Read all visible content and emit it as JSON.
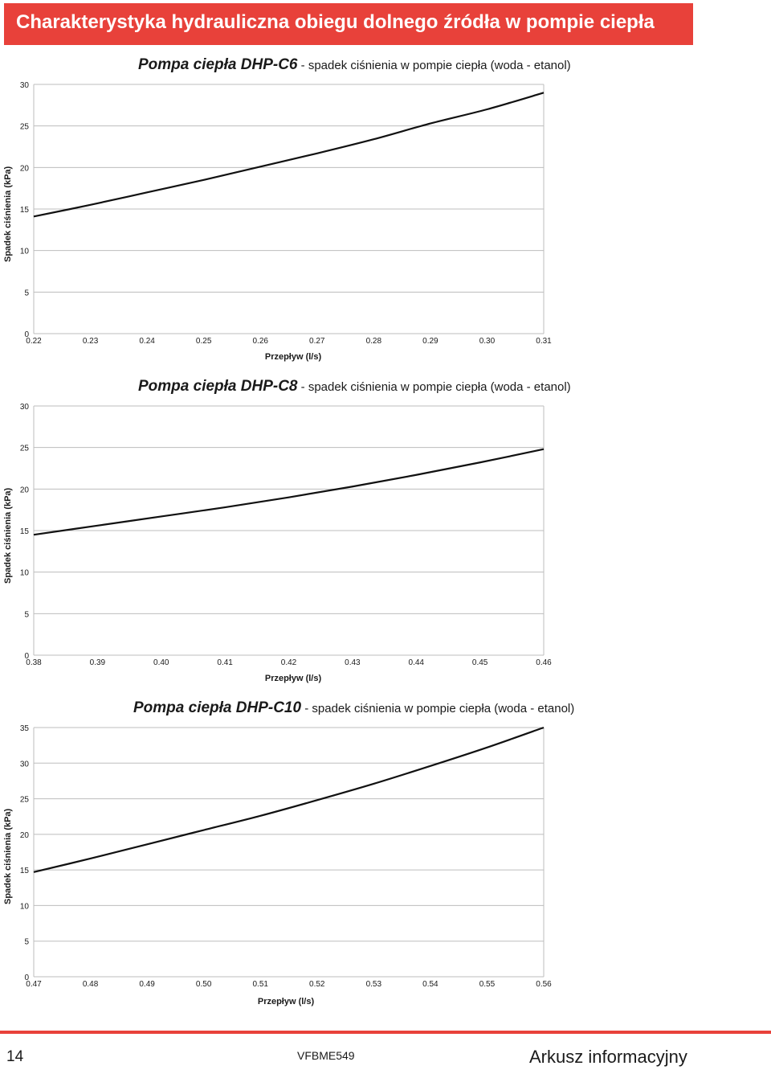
{
  "header": {
    "title": "Charakterystyka hydrauliczna obiegu dolnego źródła w pompie ciepła"
  },
  "chart_data": [
    {
      "type": "line",
      "title_model": "Pompa ciepła DHP-C6",
      "title_rest": " - spadek ciśnienia w pompie ciepła (woda - etanol)",
      "xlabel": "Przepływ (l/s)",
      "ylabel": "Spadek ciśnienia (kPa)",
      "x_ticks": [
        "0.22",
        "0.23",
        "0.24",
        "0.25",
        "0.26",
        "0.27",
        "0.28",
        "0.29",
        "0.30",
        "0.31"
      ],
      "y_ticks": [
        "0",
        "5",
        "10",
        "15",
        "20",
        "25",
        "30"
      ],
      "xlim": [
        0.22,
        0.31
      ],
      "ylim": [
        0,
        30
      ],
      "grid": true,
      "series": [
        {
          "x": [
            0.22,
            0.23,
            0.24,
            0.25,
            0.26,
            0.27,
            0.28,
            0.29,
            0.3,
            0.31
          ],
          "y": [
            14.1,
            15.5,
            17.0,
            18.5,
            20.1,
            21.7,
            23.4,
            25.3,
            27.0,
            29.0
          ]
        }
      ]
    },
    {
      "type": "line",
      "title_model": "Pompa ciepła DHP-C8",
      "title_rest": " - spadek ciśnienia w pompie ciepła (woda - etanol)",
      "xlabel": "Przepływ (l/s)",
      "ylabel": "Spadek ciśnienia (kPa)",
      "x_ticks": [
        "0.38",
        "0.39",
        "0.40",
        "0.41",
        "0.42",
        "0.43",
        "0.44",
        "0.45",
        "0.46"
      ],
      "y_ticks": [
        "0",
        "5",
        "10",
        "15",
        "20",
        "25",
        "30"
      ],
      "xlim": [
        0.38,
        0.46
      ],
      "ylim": [
        0,
        30
      ],
      "grid": true,
      "series": [
        {
          "x": [
            0.38,
            0.39,
            0.4,
            0.41,
            0.42,
            0.43,
            0.44,
            0.45,
            0.46
          ],
          "y": [
            14.5,
            15.6,
            16.7,
            17.8,
            19.0,
            20.3,
            21.7,
            23.2,
            24.8
          ]
        }
      ]
    },
    {
      "type": "line",
      "title_model": "Pompa ciepła DHP-C10",
      "title_rest": " - spadek ciśnienia w pompie ciepła (woda - etanol)",
      "xlabel": "Przepływ (l/s)",
      "ylabel": "Spadek ciśnienia (kPa)",
      "x_ticks": [
        "0.47",
        "0.48",
        "0.49",
        "0.50",
        "0.51",
        "0.52",
        "0.53",
        "0.54",
        "0.55",
        "0.56"
      ],
      "y_ticks": [
        "0",
        "5",
        "10",
        "15",
        "20",
        "25",
        "30",
        "35"
      ],
      "xlim": [
        0.47,
        0.56
      ],
      "ylim": [
        0,
        35
      ],
      "grid": true,
      "series": [
        {
          "x": [
            0.47,
            0.48,
            0.49,
            0.5,
            0.51,
            0.52,
            0.53,
            0.54,
            0.55,
            0.56
          ],
          "y": [
            14.7,
            16.6,
            18.6,
            20.6,
            22.6,
            24.8,
            27.1,
            29.6,
            32.2,
            35.0
          ]
        }
      ]
    }
  ],
  "footer": {
    "page_number": "14",
    "doc_code": "VFBME549",
    "doc_type": "Arkusz informacyjny"
  }
}
